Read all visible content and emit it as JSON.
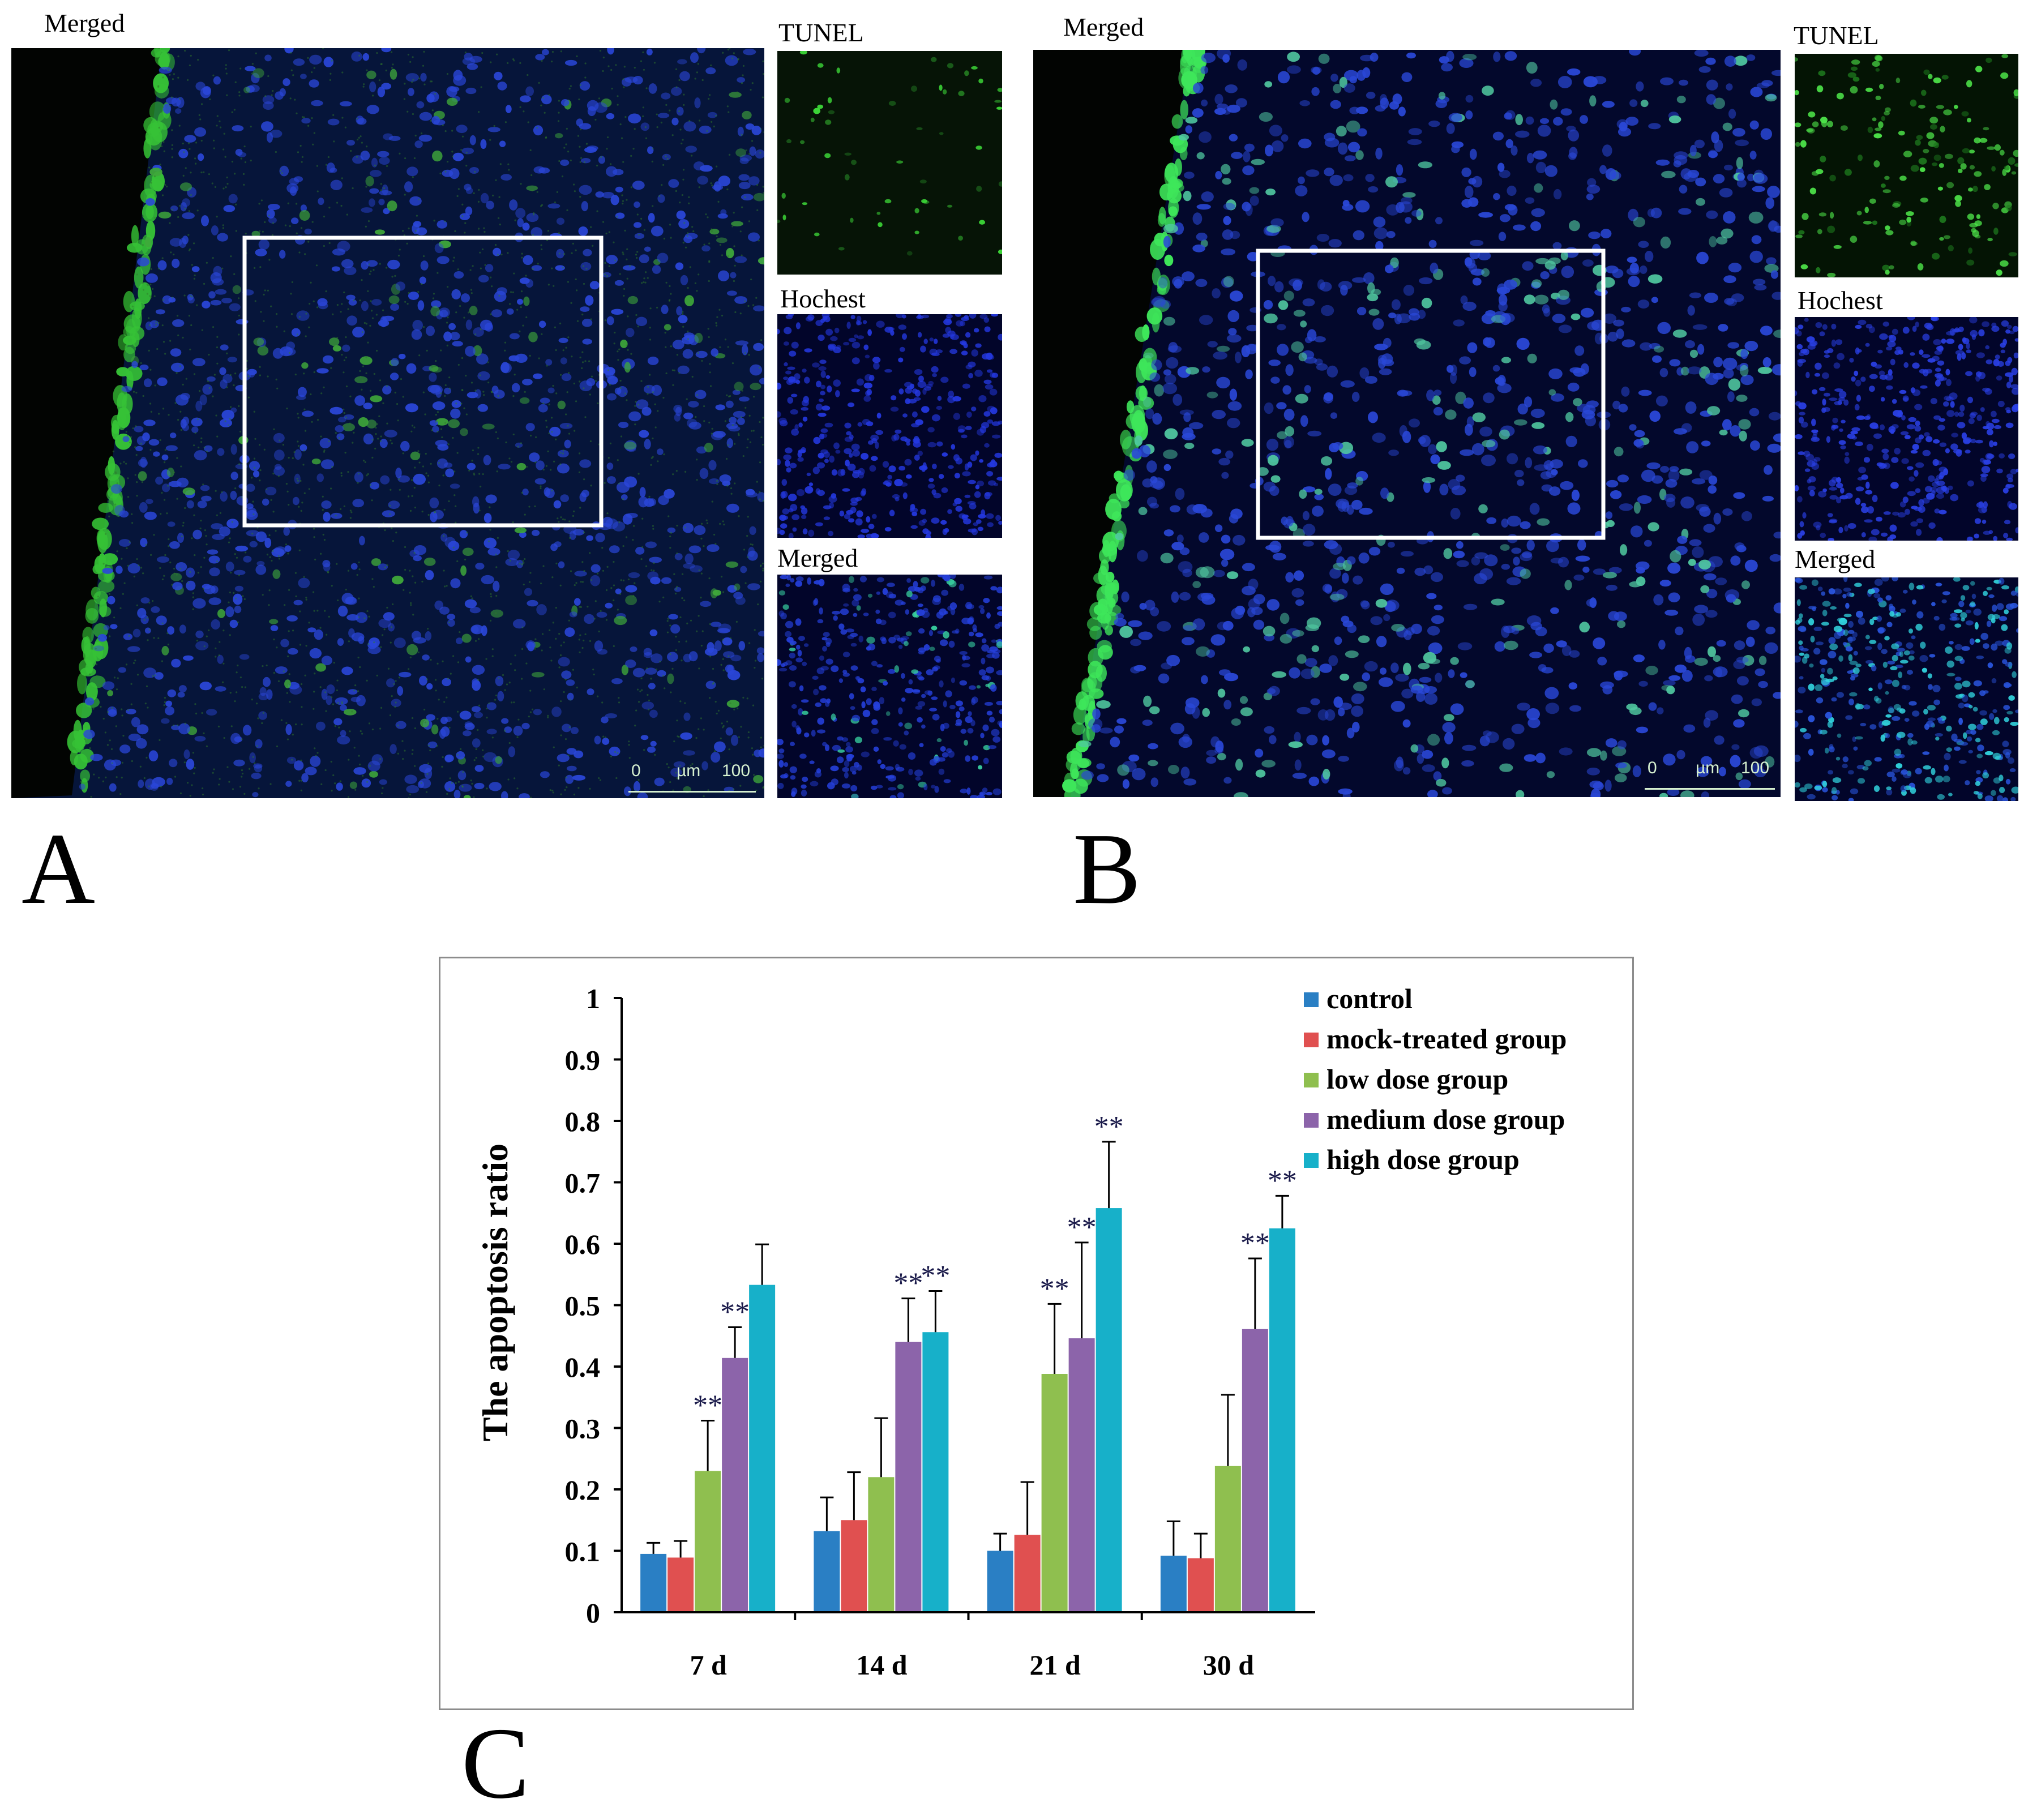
{
  "figure": {
    "panel_a": {
      "letter": "A",
      "main_label": "Merged",
      "side_labels": [
        "TUNEL",
        "Hochest",
        "Merged"
      ],
      "scale": {
        "start": "0",
        "unit": "µm",
        "end": "100"
      }
    },
    "panel_b": {
      "letter": "B",
      "main_label": "Merged",
      "side_labels": [
        "TUNEL",
        "Hochest",
        "Merged"
      ],
      "scale": {
        "start": "0",
        "unit": "µm",
        "end": "100"
      }
    },
    "panel_c": {
      "letter": "C"
    }
  },
  "colors": {
    "control": "#2a7fc4",
    "mock": "#e05050",
    "low": "#8fbf4f",
    "medium": "#8c64aa",
    "high": "#17b0c9"
  },
  "chart_data": {
    "type": "bar",
    "title": "",
    "ylabel": "The apoptosis ratio",
    "xlabel": "",
    "ylim": [
      0,
      1
    ],
    "yticks": [
      "0",
      "0.1",
      "0.2",
      "0.3",
      "0.4",
      "0.5",
      "0.6",
      "0.7",
      "0.8",
      "0.9",
      "1"
    ],
    "categories": [
      "7 d",
      "14 d",
      "21 d",
      "30 d"
    ],
    "legend_position": "top-right",
    "significance_mark": "**",
    "series": [
      {
        "name": "control",
        "values": [
          0.095,
          0.132,
          0.1,
          0.092
        ],
        "errors": [
          0.018,
          0.055,
          0.028,
          0.056
        ],
        "sig": [
          false,
          false,
          false,
          false
        ]
      },
      {
        "name": "mock-treated group",
        "values": [
          0.089,
          0.15,
          0.126,
          0.088
        ],
        "errors": [
          0.027,
          0.078,
          0.086,
          0.04
        ],
        "sig": [
          false,
          false,
          false,
          false
        ]
      },
      {
        "name": "low dose group",
        "values": [
          0.23,
          0.22,
          0.388,
          0.238
        ],
        "errors": [
          0.082,
          0.096,
          0.114,
          0.116
        ],
        "sig": [
          true,
          false,
          true,
          false
        ]
      },
      {
        "name": "medium dose group",
        "values": [
          0.414,
          0.44,
          0.446,
          0.461
        ],
        "errors": [
          0.05,
          0.071,
          0.156,
          0.115
        ],
        "sig": [
          true,
          true,
          true,
          true
        ]
      },
      {
        "name": "high dose group",
        "values": [
          0.533,
          0.456,
          0.658,
          0.625
        ],
        "errors": [
          0.066,
          0.067,
          0.108,
          0.053
        ],
        "sig": [
          false,
          true,
          true,
          true
        ]
      }
    ]
  }
}
